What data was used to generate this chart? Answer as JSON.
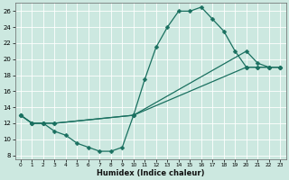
{
  "xlabel": "Humidex (Indice chaleur)",
  "bg_color": "#cce8e0",
  "grid_color": "#ffffff",
  "line_color": "#1a7060",
  "xlim": [
    -0.5,
    23.5
  ],
  "ylim": [
    7.5,
    27
  ],
  "yticks": [
    8,
    10,
    12,
    14,
    16,
    18,
    20,
    22,
    24,
    26
  ],
  "xticks": [
    0,
    1,
    2,
    3,
    4,
    5,
    6,
    7,
    8,
    9,
    10,
    11,
    12,
    13,
    14,
    15,
    16,
    17,
    18,
    19,
    20,
    21,
    22,
    23
  ],
  "line1_x": [
    0,
    1,
    2,
    3,
    4,
    5,
    6,
    7,
    8,
    9,
    10,
    11,
    12,
    13,
    14,
    15,
    16,
    17,
    18,
    19,
    20,
    21,
    22,
    23
  ],
  "line1_y": [
    13,
    12,
    12,
    11,
    10.5,
    9.5,
    9,
    8.5,
    8.5,
    9,
    13,
    17.5,
    21.5,
    24,
    26,
    26,
    26.5,
    25,
    23.5,
    21,
    19,
    19,
    19,
    19
  ],
  "line2_x": [
    0,
    1,
    2,
    3,
    10,
    20,
    21,
    22,
    23
  ],
  "line2_y": [
    13,
    12,
    12,
    12,
    13,
    21,
    19.5,
    19,
    19
  ],
  "line3_x": [
    0,
    1,
    2,
    3,
    10,
    20,
    21,
    22,
    23
  ],
  "line3_y": [
    13,
    12,
    12,
    12,
    13,
    19,
    19,
    19,
    19
  ]
}
